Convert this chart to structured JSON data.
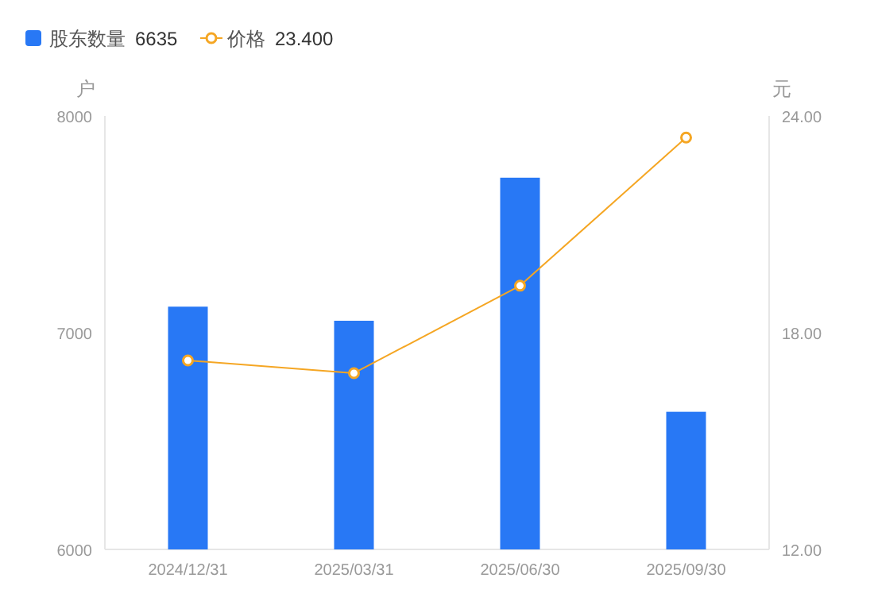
{
  "chart_data": {
    "type": "bar",
    "categories": [
      "2024/12/31",
      "2025/03/31",
      "2025/06/30",
      "2025/09/30"
    ],
    "series": [
      {
        "name": "股东数量",
        "color": "#2878f5",
        "values": [
          7120,
          7055,
          7715,
          6635
        ]
      },
      {
        "name": "价格",
        "type": "line",
        "axis": "y2",
        "color": "#f5a623",
        "values": [
          17.23,
          16.88,
          19.3,
          23.4
        ],
        "marker": "circle"
      }
    ],
    "ylabel": "户",
    "y2label": "元",
    "ylim": [
      6000,
      8000
    ],
    "yticks": [
      6000,
      7000,
      8000
    ],
    "y2lim": [
      12,
      24
    ],
    "y2ticks": [
      {
        "value": 12,
        "label": "12.00"
      },
      {
        "value": 18,
        "label": "18.00"
      },
      {
        "value": 24,
        "label": "24.00"
      }
    ],
    "annotations": [
      "6635",
      "23.400"
    ],
    "legend": "top left",
    "grid": false
  }
}
